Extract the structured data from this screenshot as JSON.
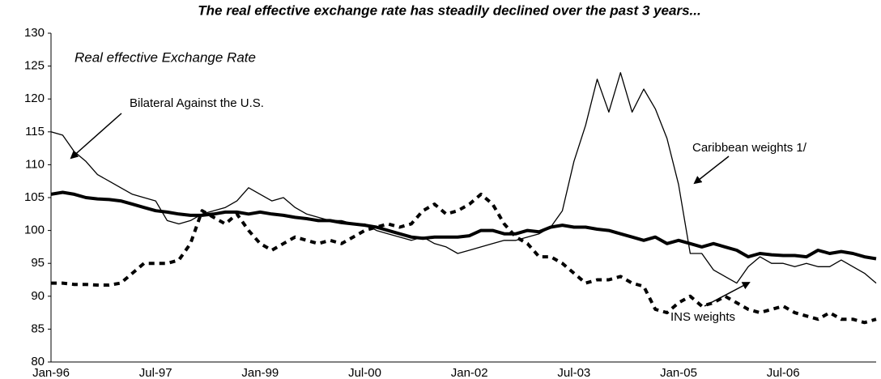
{
  "chart_data": {
    "type": "line",
    "title": "The real effective exchange rate has steadily declined over the past 3 years...",
    "subtitle": "Real effective Exchange Rate",
    "categories": [
      "Jan-96",
      null,
      null,
      null,
      null,
      null,
      null,
      null,
      null,
      "Jul-97",
      null,
      null,
      null,
      null,
      null,
      null,
      null,
      null,
      "Jan-99",
      null,
      null,
      null,
      null,
      null,
      null,
      null,
      null,
      "Jul-00",
      null,
      null,
      null,
      null,
      null,
      null,
      null,
      null,
      "Jan-02",
      null,
      null,
      null,
      null,
      null,
      null,
      null,
      null,
      "Jul-03",
      null,
      null,
      null,
      null,
      null,
      null,
      null,
      null,
      "Jan-05",
      null,
      null,
      null,
      null,
      null,
      null,
      null,
      null,
      "Jul-06",
      null,
      null,
      null,
      null,
      null,
      null,
      null,
      null
    ],
    "series": [
      {
        "name": "Bilateral Against the U.S.",
        "color": "#000000",
        "line_width": 4,
        "dashed": false,
        "values": [
          105.5,
          105.8,
          105.5,
          105,
          104.8,
          104.7,
          104.5,
          104,
          103.5,
          103,
          102.8,
          102.5,
          102.3,
          102.3,
          102.5,
          102.8,
          102.8,
          102.5,
          102.8,
          102.5,
          102.3,
          102,
          101.8,
          101.5,
          101.5,
          101.2,
          101,
          100.8,
          100.5,
          100,
          99.5,
          99,
          98.8,
          99,
          99,
          99,
          99.2,
          100,
          100,
          99.5,
          99.5,
          100,
          99.8,
          100.5,
          100.8,
          100.5,
          100.5,
          100.2,
          100,
          99.5,
          99,
          98.5,
          99,
          98,
          98.5,
          98,
          97.5,
          98,
          97.5,
          97,
          96,
          96.5,
          96.3,
          96.2,
          96.2,
          96,
          97,
          96.5,
          96.8,
          96.5,
          96,
          95.7
        ]
      },
      {
        "name": "Caribbean weights 1/",
        "color": "#000000",
        "line_width": 1.3,
        "dashed": false,
        "values": [
          115,
          114.5,
          112,
          110.5,
          108.5,
          107.5,
          106.5,
          105.5,
          105,
          104.5,
          101.5,
          101,
          101.5,
          102.5,
          103,
          103.5,
          104.5,
          106.5,
          105.5,
          104.5,
          105,
          103.5,
          102.5,
          102,
          101.5,
          101.5,
          101,
          101,
          100,
          99.5,
          99,
          98.5,
          99,
          98,
          97.5,
          96.5,
          97,
          97.5,
          98,
          98.5,
          98.5,
          99,
          99.5,
          100.5,
          103,
          110.5,
          116,
          123,
          118,
          124,
          118,
          121.5,
          118.5,
          114,
          107,
          96.5,
          96.5,
          94,
          93,
          92,
          94.5,
          96,
          95,
          95,
          94.5,
          95,
          94.5,
          94.5,
          95.5,
          94.5,
          93.5,
          92
        ]
      },
      {
        "name": "INS weights",
        "color": "#000000",
        "line_width": 4,
        "dashed": true,
        "values": [
          92,
          92,
          91.8,
          91.8,
          91.7,
          91.7,
          92,
          93.5,
          95,
          95,
          95,
          95.5,
          98,
          103,
          102,
          101,
          102.5,
          100,
          98,
          97,
          98,
          99,
          98.5,
          98,
          98.5,
          98,
          99,
          100,
          100.5,
          101,
          100.5,
          101,
          103,
          104,
          102.5,
          103,
          104,
          105.5,
          104,
          101,
          99,
          98,
          96,
          96,
          95,
          93.5,
          92,
          92.5,
          92.5,
          93,
          92,
          91.5,
          88,
          87.5,
          89,
          90,
          88.5,
          89,
          90,
          89,
          88,
          87.5,
          88,
          88.5,
          87.5,
          87,
          86.5,
          87.5,
          86.5,
          86.5,
          86,
          86.5
        ]
      }
    ],
    "ylim": [
      80,
      130
    ],
    "yticks": [
      80,
      85,
      90,
      95,
      100,
      105,
      110,
      115,
      120,
      125,
      130
    ],
    "grid": false,
    "legend": false
  }
}
